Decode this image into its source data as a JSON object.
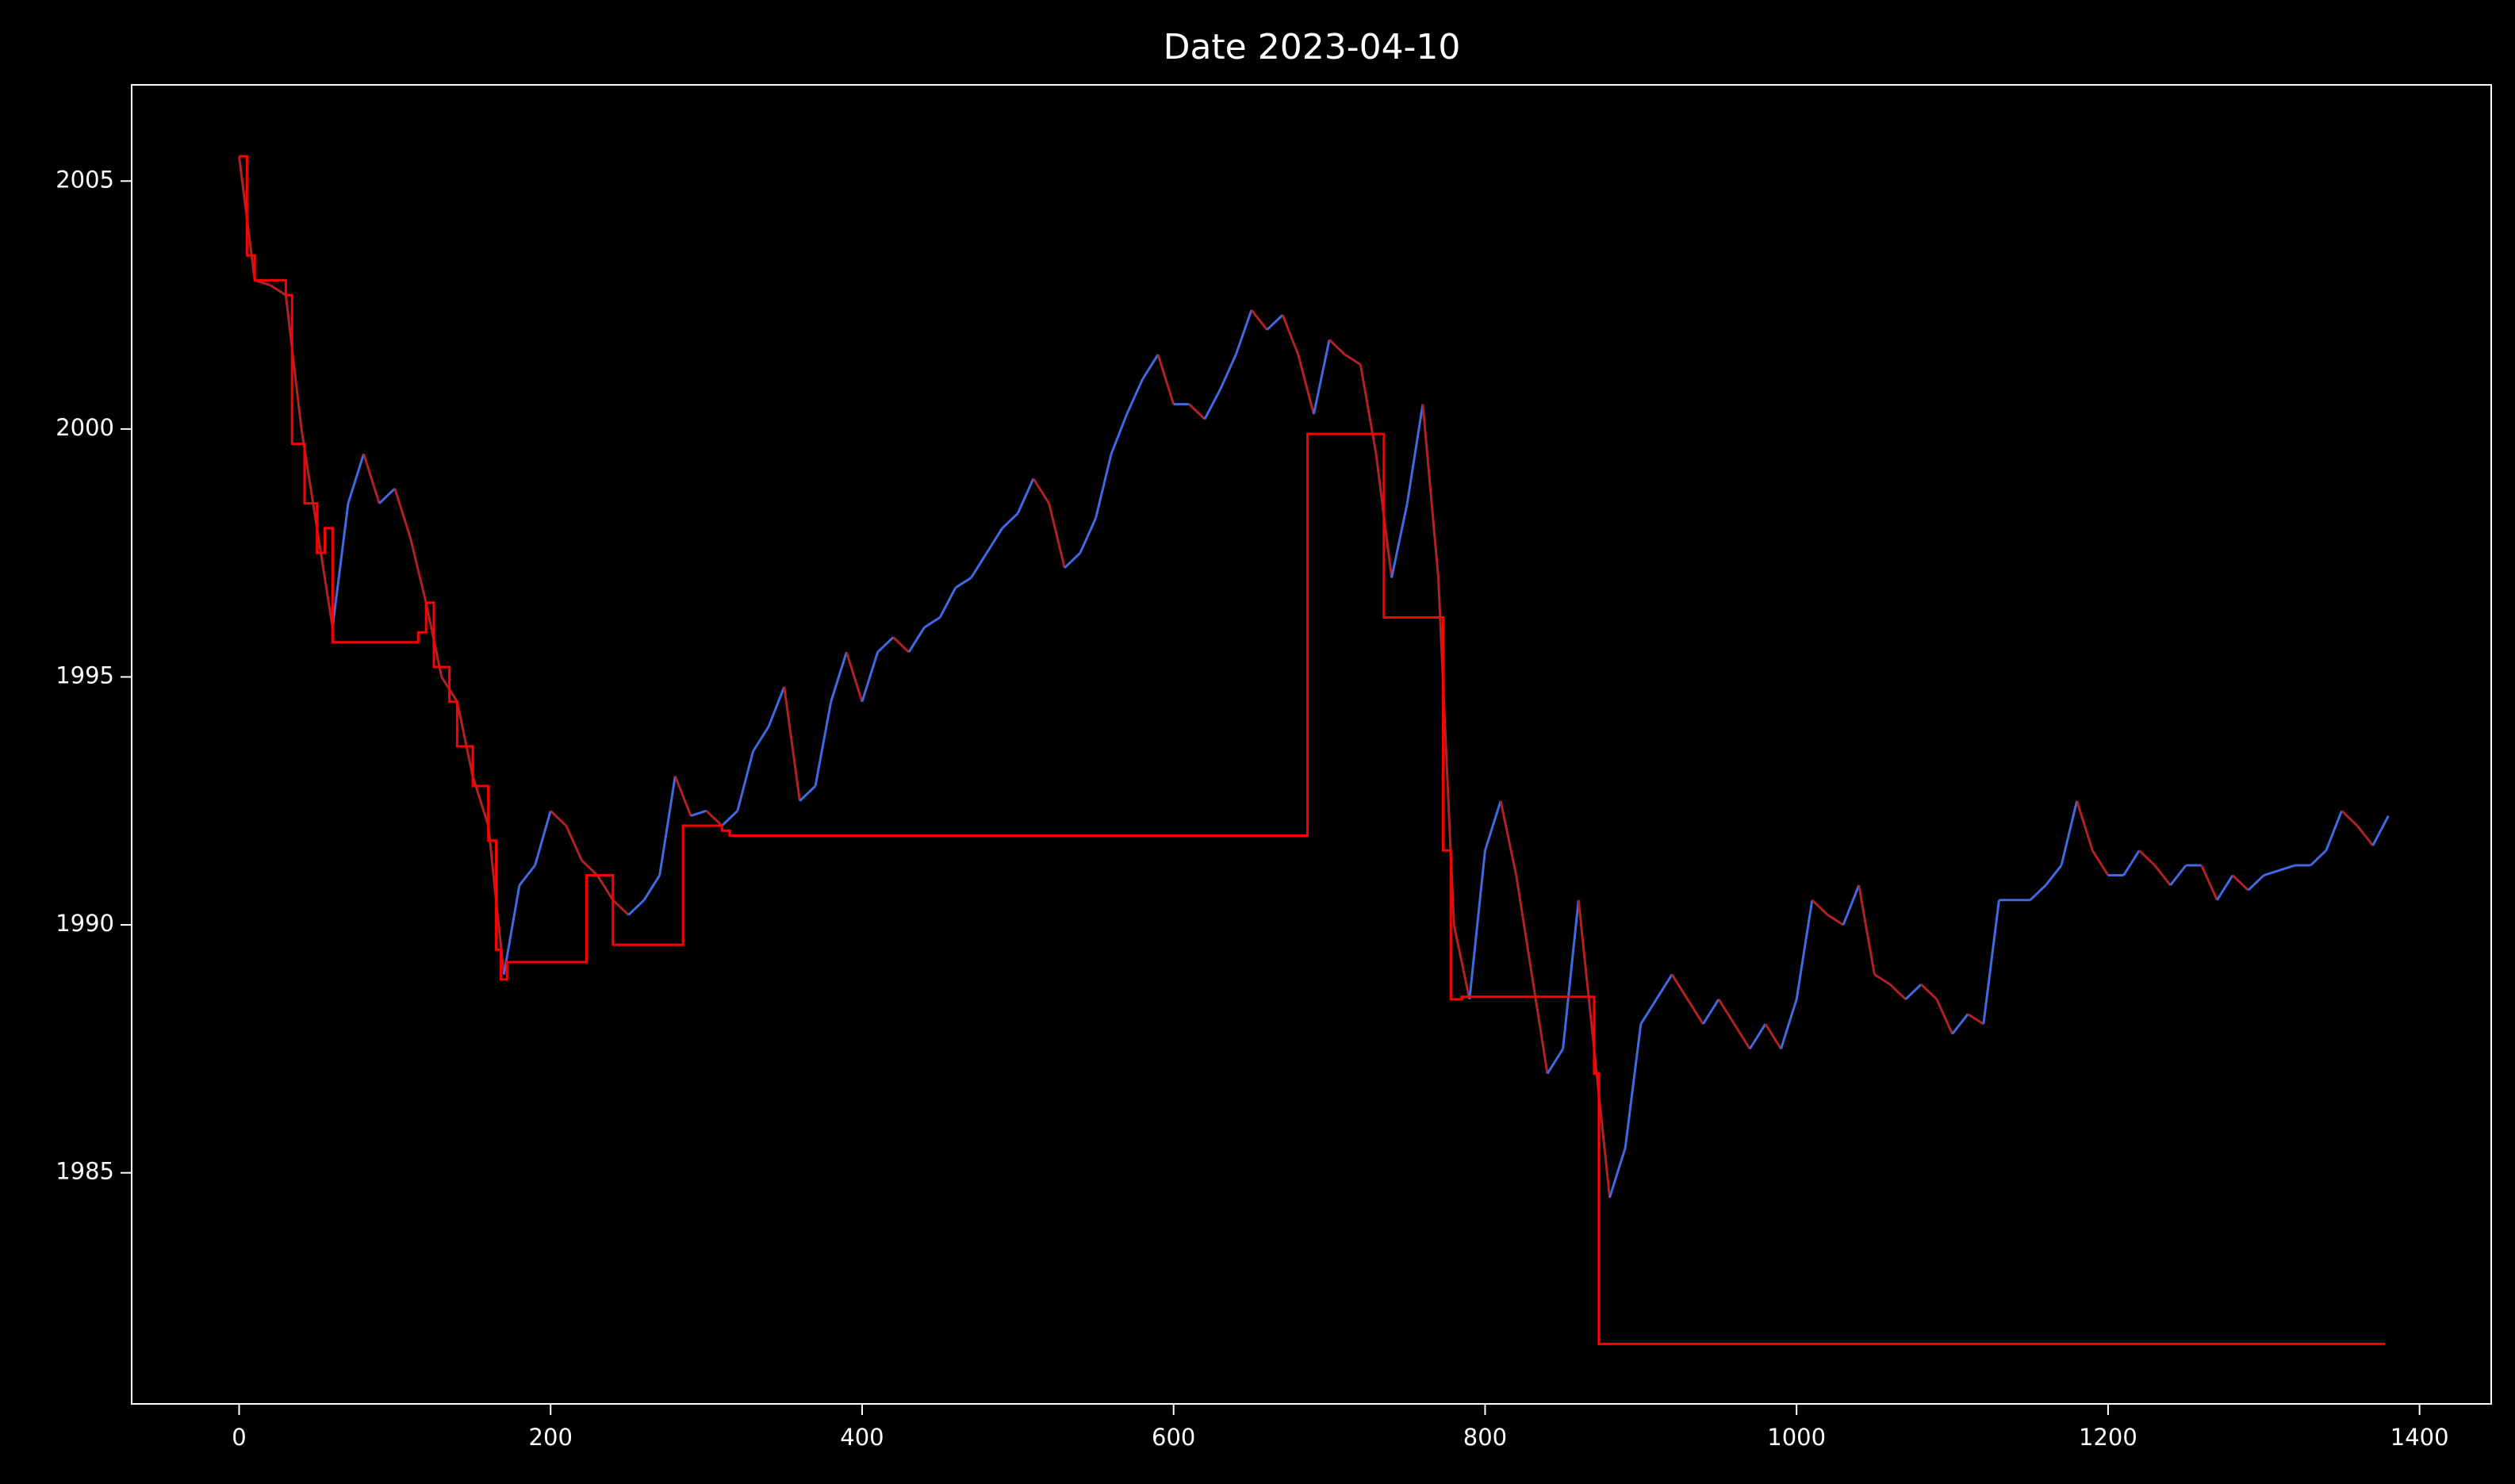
{
  "chart_data": {
    "type": "line",
    "title": "Date 2023-04-10",
    "xlim": [
      -69,
      1446
    ],
    "ylim": [
      1980.34,
      2006.94
    ],
    "xticks": [
      0,
      200,
      400,
      600,
      800,
      1000,
      1200,
      1400
    ],
    "yticks": [
      1985,
      1990,
      1995,
      2000,
      2005
    ],
    "series": [
      {
        "color": "#4169e1",
        "down_color": "#b22222",
        "x": [
          0,
          10,
          20,
          30,
          40,
          50,
          60,
          70,
          80,
          90,
          100,
          110,
          120,
          130,
          140,
          150,
          160,
          170,
          180,
          190,
          200,
          210,
          220,
          230,
          240,
          250,
          260,
          270,
          280,
          290,
          300,
          310,
          320,
          330,
          340,
          350,
          360,
          370,
          380,
          390,
          400,
          410,
          420,
          430,
          440,
          450,
          460,
          470,
          480,
          490,
          500,
          510,
          520,
          530,
          540,
          550,
          560,
          570,
          580,
          590,
          600,
          610,
          620,
          630,
          640,
          650,
          660,
          670,
          680,
          690,
          700,
          710,
          720,
          730,
          740,
          750,
          760,
          770,
          780,
          790,
          800,
          810,
          820,
          830,
          840,
          850,
          860,
          870,
          880,
          890,
          900,
          910,
          920,
          930,
          940,
          950,
          960,
          970,
          980,
          990,
          1000,
          1010,
          1020,
          1030,
          1040,
          1050,
          1060,
          1070,
          1080,
          1090,
          1100,
          1110,
          1120,
          1130,
          1140,
          1150,
          1160,
          1170,
          1180,
          1190,
          1200,
          1210,
          1220,
          1230,
          1240,
          1250,
          1260,
          1270,
          1280,
          1290,
          1300,
          1310,
          1320,
          1330,
          1340,
          1350,
          1360,
          1370,
          1380
        ],
        "values": [
          2005.5,
          2003.0,
          2002.9,
          2002.7,
          2000.0,
          1998.0,
          1996.0,
          1998.5,
          1999.5,
          1998.5,
          1998.8,
          1997.8,
          1996.5,
          1995.0,
          1994.5,
          1993.0,
          1992.0,
          1989.0,
          1990.8,
          1991.2,
          1992.3,
          1992.0,
          1991.3,
          1991.0,
          1990.5,
          1990.2,
          1990.5,
          1991.0,
          1993.0,
          1992.2,
          1992.3,
          1992.0,
          1992.3,
          1993.5,
          1994.0,
          1994.8,
          1992.5,
          1992.8,
          1994.5,
          1995.5,
          1994.5,
          1995.5,
          1995.8,
          1995.5,
          1996.0,
          1996.2,
          1996.8,
          1997.0,
          1997.5,
          1998.0,
          1998.3,
          1999.0,
          1998.5,
          1997.2,
          1997.5,
          1998.2,
          1999.5,
          2000.3,
          2001.0,
          2001.5,
          2000.5,
          2000.5,
          2000.2,
          2000.8,
          2001.5,
          2002.4,
          2002.0,
          2002.3,
          2001.5,
          2000.3,
          2001.8,
          2001.5,
          2001.3,
          1999.5,
          1997.0,
          1998.5,
          2000.5,
          1997.0,
          1990.0,
          1988.5,
          1991.5,
          1992.5,
          1991.0,
          1989.0,
          1987.0,
          1987.5,
          1990.5,
          1987.5,
          1984.5,
          1985.5,
          1988.0,
          1988.5,
          1989.0,
          1988.5,
          1988.0,
          1988.5,
          1988.0,
          1987.5,
          1988.0,
          1987.5,
          1988.5,
          1990.5,
          1990.2,
          1990.0,
          1990.8,
          1989.0,
          1988.8,
          1988.5,
          1988.8,
          1988.5,
          1987.8,
          1988.2,
          1988.0,
          1990.5,
          1990.5,
          1990.5,
          1990.8,
          1991.2,
          1992.5,
          1991.5,
          1991.0,
          1991.0,
          1991.5,
          1991.2,
          1990.8,
          1991.2,
          1991.2,
          1990.5,
          1991.0,
          1990.7,
          1991.0,
          1991.1,
          1991.2,
          1991.2,
          1991.5,
          1992.3,
          1992.0,
          1991.6,
          1992.2
        ]
      },
      {
        "color": "#ff0000",
        "step": "post",
        "x": [
          0,
          5,
          10,
          30,
          34,
          42,
          50,
          55,
          60,
          115,
          120,
          125,
          135,
          140,
          150,
          160,
          165,
          168,
          172,
          223,
          240,
          285,
          310,
          315,
          686,
          735,
          773,
          778,
          785,
          870,
          873,
          1378
        ],
        "values": [
          2005.5,
          2003.5,
          2003.0,
          2002.7,
          1999.7,
          1998.5,
          1997.5,
          1998.0,
          1995.7,
          1995.9,
          1996.5,
          1995.2,
          1994.5,
          1993.6,
          1992.8,
          1991.7,
          1989.5,
          1988.9,
          1989.25,
          1991.0,
          1989.6,
          1992.0,
          1991.9,
          1991.8,
          1999.9,
          1996.2,
          1991.5,
          1988.5,
          1988.55,
          1987.0,
          1981.55,
          1981.55
        ]
      }
    ]
  }
}
